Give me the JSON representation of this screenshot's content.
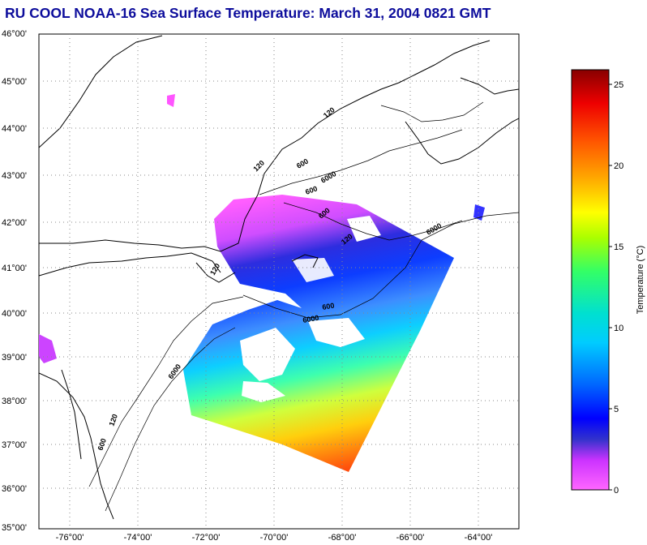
{
  "title": "RU COOL  NOAA-16  Sea Surface Temperature:  March 31, 2004 0821 GMT",
  "map": {
    "lat_labels": [
      "46°00'",
      "45°00'",
      "44°00'",
      "43°00'",
      "42°00'",
      "41°00'",
      "40°00'",
      "39°00'",
      "38°00'",
      "37°00'",
      "36°00'",
      "35°00'"
    ],
    "lon_labels": [
      "-76°00'",
      "-74°00'",
      "-72°00'",
      "-70°00'",
      "-68°00'",
      "-66°00'",
      "-64°00'"
    ],
    "isobath_labels": [
      "120",
      "600",
      "6000",
      "120",
      "600",
      "6000",
      "120",
      "600",
      "6000",
      "120",
      "600",
      "6000",
      "120",
      "600"
    ]
  },
  "colorbar": {
    "label": "Temperature (°C)",
    "ticks": [
      "25",
      "20",
      "15",
      "10",
      "5",
      "0"
    ],
    "range": [
      0,
      26
    ]
  },
  "colors": {
    "title": "#0d0d9c",
    "grid": "#888888"
  }
}
